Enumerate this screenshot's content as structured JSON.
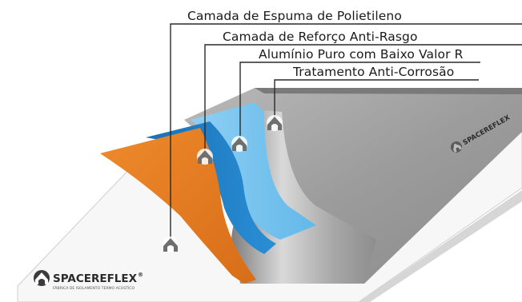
{
  "layers": [
    {
      "label": "Camada de Espuma de Polietileno",
      "color": "#e47b22"
    },
    {
      "label": "Camada de Reforço Anti-Rasgo",
      "color": "#1f7ec7"
    },
    {
      "label": "Alumínio Puro com Baixo Valor R",
      "color": "#74c3ef"
    },
    {
      "label": "Tratamento Anti-Corrosão",
      "color": "#9a9a9a"
    }
  ],
  "brand": {
    "name": "SPACEREFLEX",
    "trademark": "®",
    "tagline": "FÁBRICA DE ISOLAMENTO TERMO ACÚSTICO"
  },
  "icons": {
    "layer_marker": "house-logo-icon",
    "brand_logo": "spacereflex-logo-icon"
  }
}
